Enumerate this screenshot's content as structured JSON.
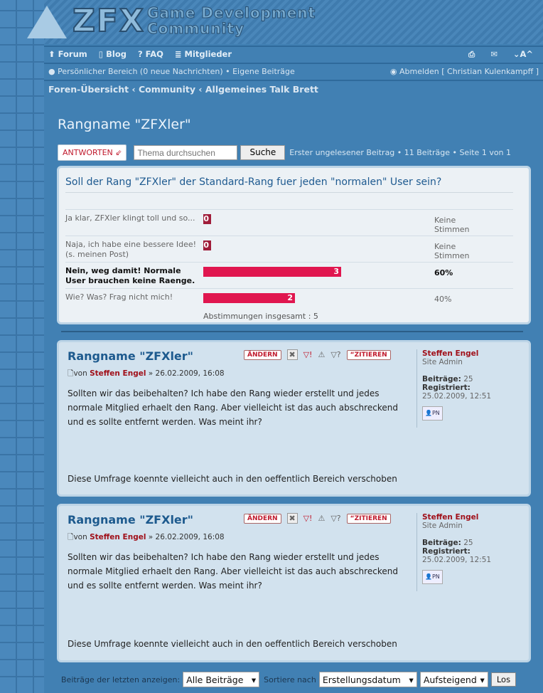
{
  "header": {
    "logo_text": "ZFX",
    "logo_line1": "Game Development",
    "logo_line2": "Community"
  },
  "nav": {
    "items": [
      {
        "label": "Forum",
        "icon": "home-icon"
      },
      {
        "label": "Blog",
        "icon": "blog-icon"
      },
      {
        "label": "FAQ",
        "icon": "faq-icon"
      },
      {
        "label": "Mitglieder",
        "icon": "members-icon"
      }
    ],
    "font_size_label": "⌄A^"
  },
  "userbar": {
    "personal": "Persönlicher Bereich (0 neue Nachrichten)",
    "own_posts": "Eigene Beiträge",
    "logout": "Abmelden [ Christian Kulenkampff ]"
  },
  "breadcrumb": [
    "Foren-Übersicht",
    "Community",
    "Allgemeines Talk Brett"
  ],
  "topic": {
    "title": "Rangname \"ZFXler\""
  },
  "toolbar": {
    "reply": "ANTWORTEN",
    "search_placeholder": "Thema durchsuchen",
    "search_button": "Suche",
    "info": "Erster ungelesener Beitrag • 11 Beiträge • Seite 1 von 1"
  },
  "poll": {
    "question": "Soll der Rang \"ZFXler\" der Standard-Rang fuer jeden \"normalen\" User sein?",
    "options": [
      {
        "label": "Ja klar, ZFXler klingt toll und so...",
        "votes": "0",
        "percent": "Keine Stimmen",
        "fraction": 0
      },
      {
        "label": "Naja, ich habe eine bessere Idee! (s. meinen Post)",
        "votes": "0",
        "percent": "Keine Stimmen",
        "fraction": 0
      },
      {
        "label": "Nein, weg damit! Normale User brauchen keine Raenge.",
        "votes": "3",
        "percent": "60%",
        "fraction": 0.6
      },
      {
        "label": "Wie? Was? Frag nicht mich!",
        "votes": "2",
        "percent": "40%",
        "fraction": 0.4
      }
    ],
    "total": "Abstimmungen insgesamt : 5"
  },
  "posts": [
    {
      "title": "Rangname \"ZFXler\"",
      "by": "von",
      "author": "Steffen Engel",
      "date": "» 26.02.2009, 16:08",
      "body": "Sollten wir das beibehalten? Ich habe den Rang wieder erstellt und jedes normale Mitglied erhaelt den Rang. Aber vielleicht ist das auch abschreckend und es sollte entfernt werden. Was meint ihr?",
      "signature": "Diese Umfrage koennte vielleicht auch in den oeffentlich Bereich verschoben",
      "edit": "ÄNDERN",
      "quote": "ZITIEREN",
      "rank": "Site Admin",
      "posts_label": "Beiträge:",
      "posts_count": "25",
      "registered_label": "Registriert:",
      "registered": "25.02.2009, 12:51",
      "pm": "PN"
    },
    {
      "title": "Rangname \"ZFXler\"",
      "by": "von",
      "author": "Steffen Engel",
      "date": "» 26.02.2009, 16:08",
      "body": "Sollten wir das beibehalten? Ich habe den Rang wieder erstellt und jedes normale Mitglied erhaelt den Rang. Aber vielleicht ist das auch abschreckend und es sollte entfernt werden. Was meint ihr?",
      "signature": "Diese Umfrage koennte vielleicht auch in den oeffentlich Bereich verschoben",
      "edit": "ÄNDERN",
      "quote": "ZITIEREN",
      "rank": "Site Admin",
      "posts_label": "Beiträge:",
      "posts_count": "25",
      "registered_label": "Registriert:",
      "registered": "25.02.2009, 12:51",
      "pm": "PN"
    }
  ],
  "footer": {
    "show_label": "Beiträge der letzten anzeigen:",
    "show_value": "Alle Beiträge",
    "sort_label": "Sortiere nach",
    "sort_value": "Erstellungsdatum",
    "order_value": "Aufsteigend",
    "go": "Los"
  }
}
